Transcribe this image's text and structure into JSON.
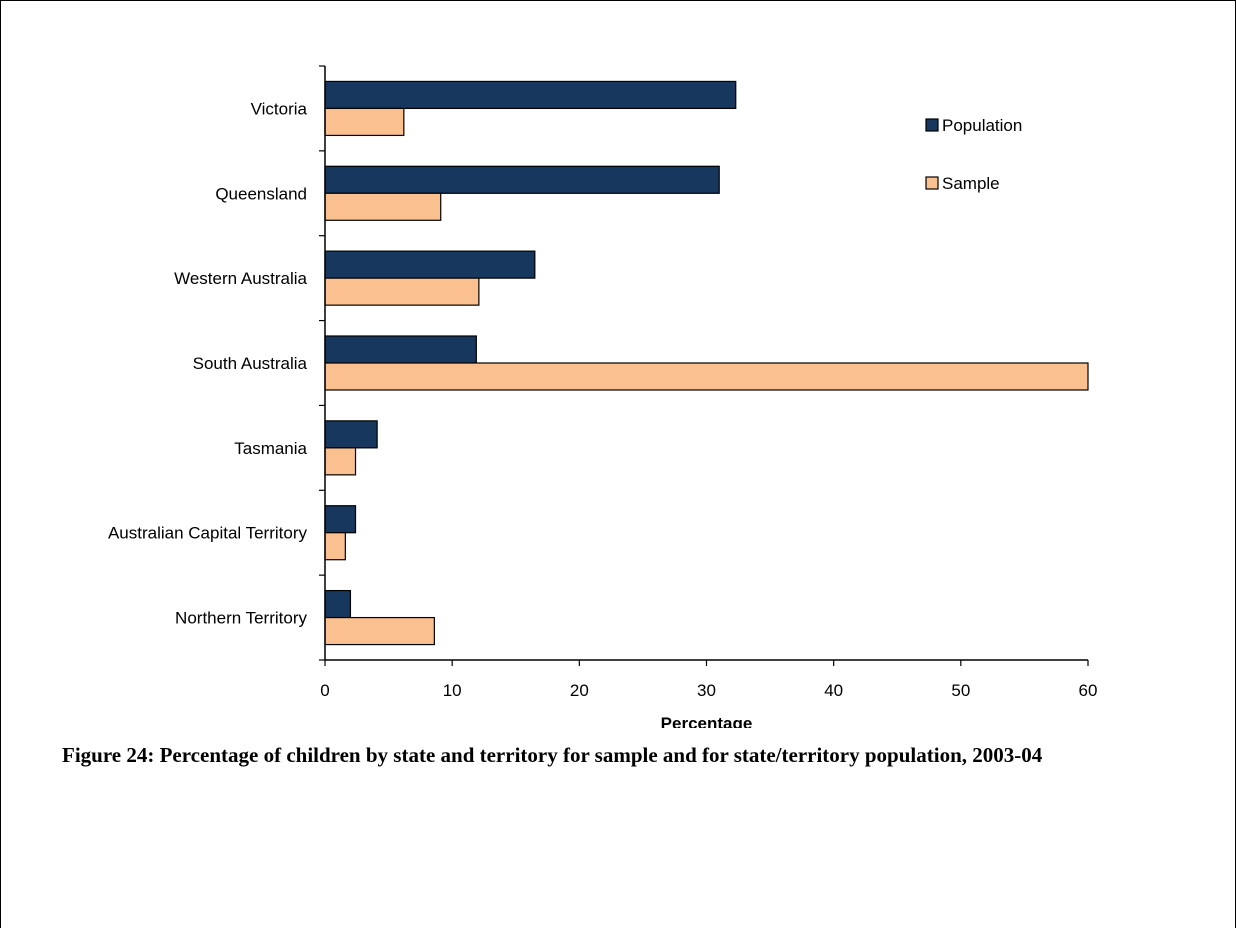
{
  "caption": "Figure 24: Percentage of children by state and territory for sample and for state/territory population, 2003-04",
  "chart_data": {
    "type": "bar",
    "orientation": "horizontal",
    "categories": [
      "Victoria",
      "Queensland",
      "Western Australia",
      "South Australia",
      "Tasmania",
      "Australian Capital Territory",
      "Northern Territory"
    ],
    "series": [
      {
        "name": "Population",
        "color": "#17375e",
        "values": [
          32.3,
          31.0,
          16.5,
          11.9,
          4.1,
          2.4,
          2.0
        ]
      },
      {
        "name": "Sample",
        "color": "#fac090",
        "values": [
          6.2,
          9.1,
          12.1,
          60.0,
          2.4,
          1.6,
          8.6
        ]
      }
    ],
    "xlabel": "Percentage",
    "ylabel": "",
    "xlim": [
      0,
      60
    ],
    "xticks": [
      0,
      10,
      20,
      30,
      40,
      50,
      60
    ],
    "grid": false,
    "legend_position": "top-right"
  }
}
